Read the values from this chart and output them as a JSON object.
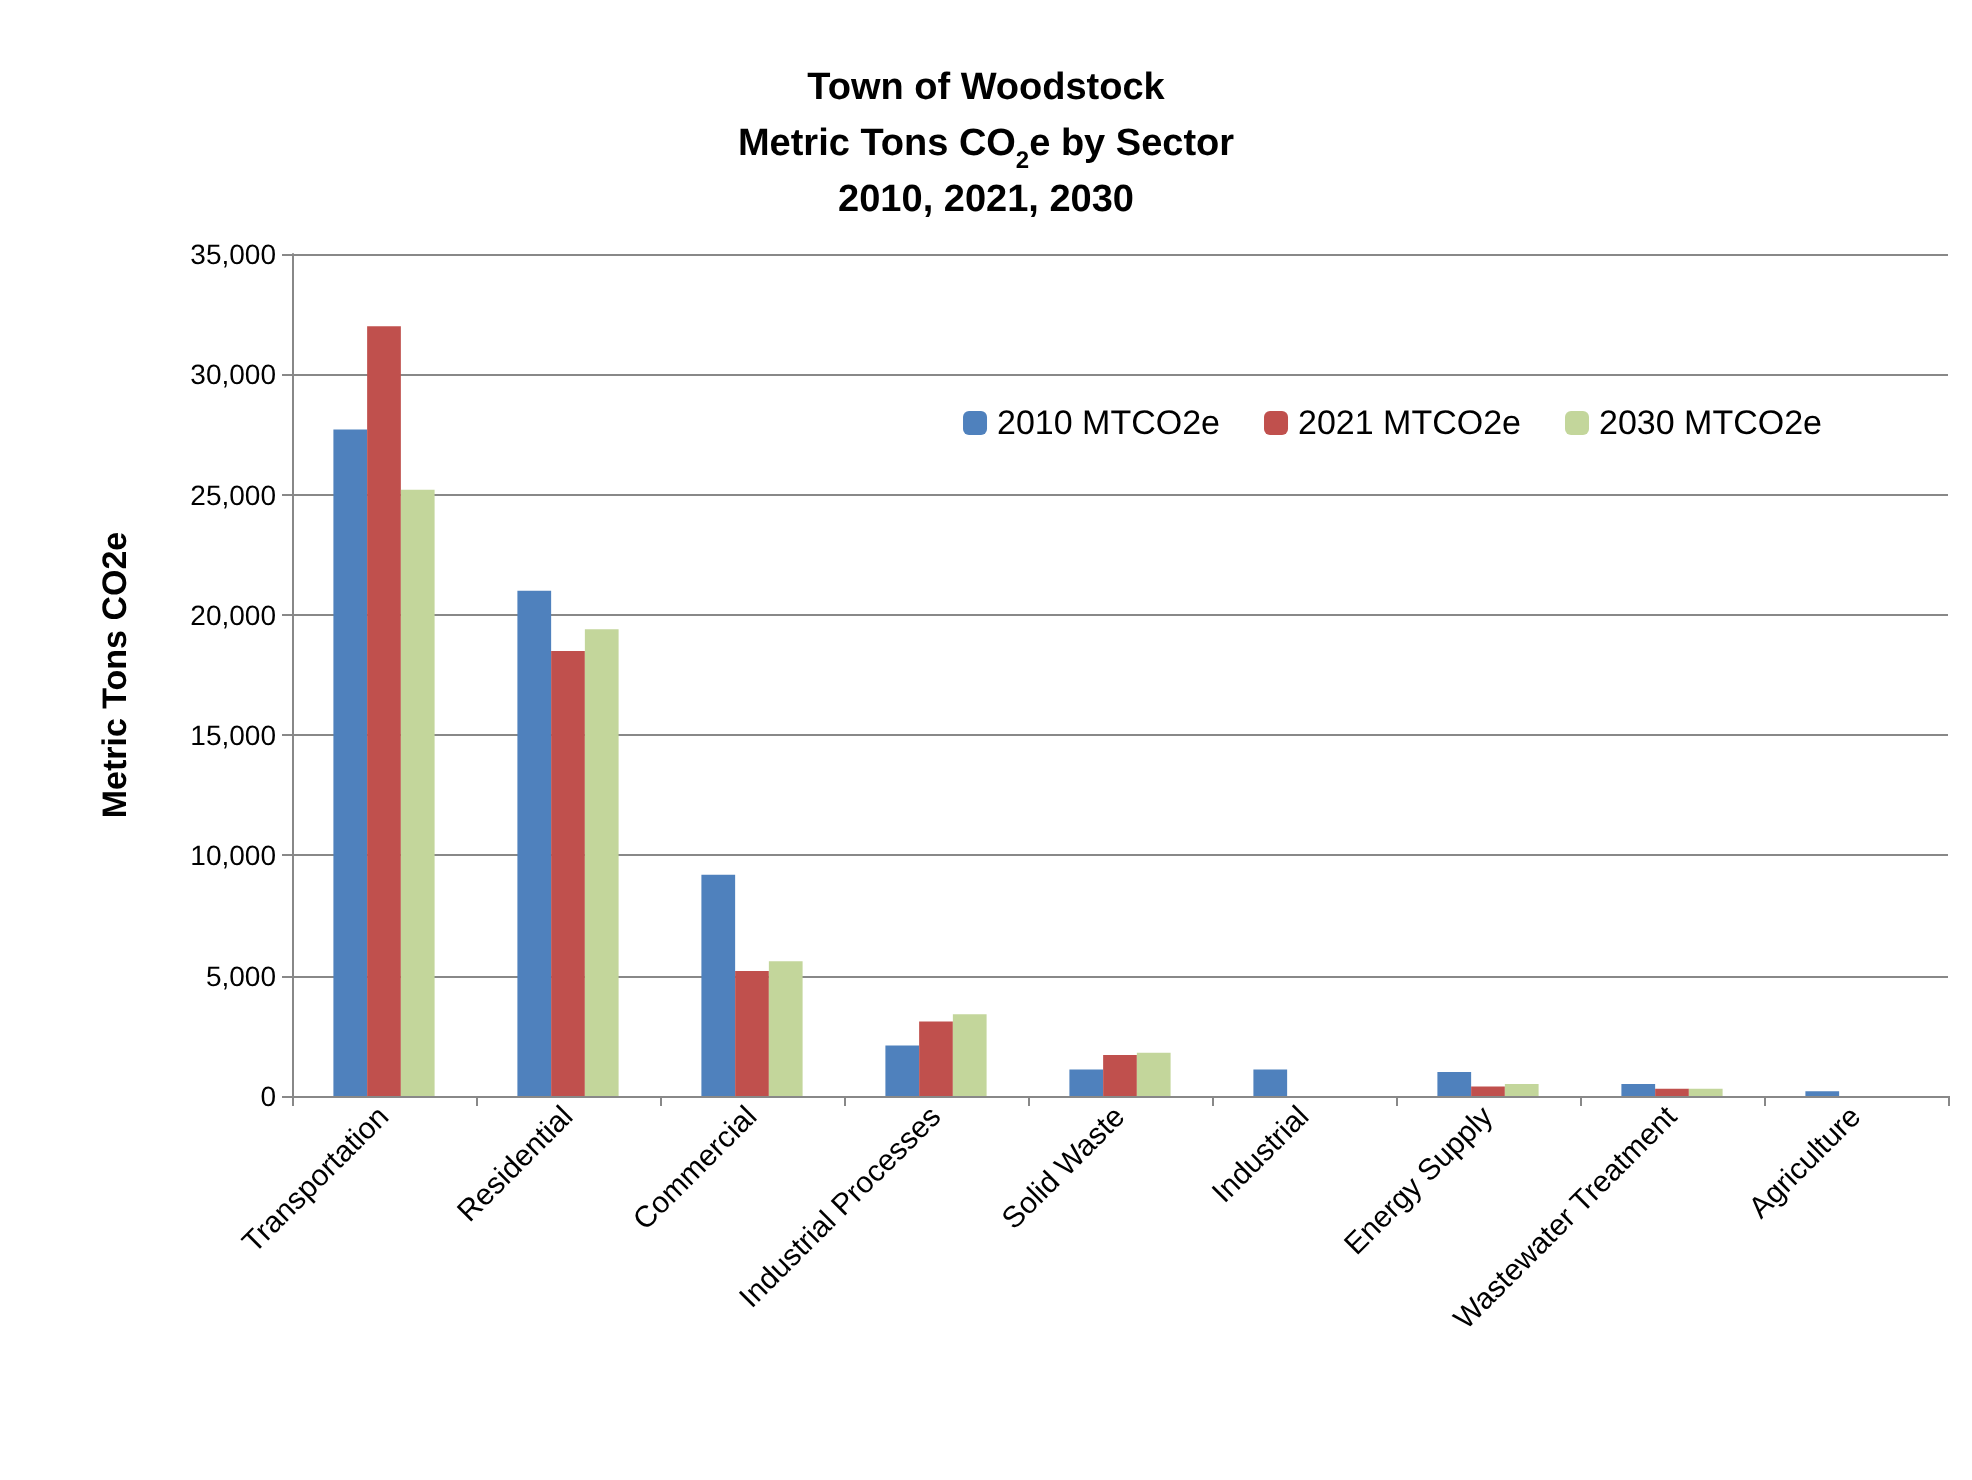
{
  "chart_data": {
    "type": "bar",
    "title": "Town of Woodstock\nMetric Tons CO$_{2}$e by Sector\n2010, 2021, 2030",
    "ylabel": "Metric Tons CO2e",
    "categories": [
      "Transportation",
      "Residential",
      "Commercial",
      "Industrial Processes",
      "Solid Waste",
      "Industrial",
      "Energy Supply",
      "Wastewater Treatment",
      "Agriculture"
    ],
    "series": [
      {
        "name": "2010 MTCO2e",
        "color": "#4f81bd",
        "values": [
          27700,
          21000,
          9200,
          2100,
          1100,
          1100,
          1000,
          500,
          200
        ]
      },
      {
        "name": "2021 MTCO2e",
        "color": "#c0504d",
        "values": [
          32000,
          18500,
          5200,
          3100,
          1700,
          0,
          400,
          300,
          0
        ]
      },
      {
        "name": "2030 MTCO2e",
        "color": "#c3d69b",
        "values": [
          25200,
          19400,
          5600,
          3400,
          1800,
          0,
          500,
          300,
          0
        ]
      }
    ],
    "ylim": [
      0,
      35000
    ],
    "yticks": [
      0,
      {
        "value": 5000,
        "label": "5,000"
      },
      {
        "value": 10000,
        "label": "10,000"
      },
      {
        "value": 15000,
        "label": "15,000"
      },
      {
        "value": 20000,
        "label": "20,000"
      },
      {
        "value": 25000,
        "label": "25,000"
      },
      {
        "value": 30000,
        "label": "30,000"
      },
      {
        "value": 35000,
        "label": "35,000"
      }
    ],
    "grid": "y",
    "legend": "top right"
  }
}
